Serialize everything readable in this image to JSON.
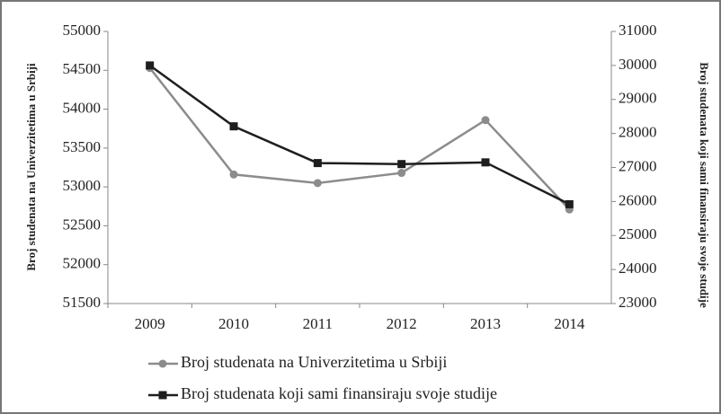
{
  "chart_data": {
    "type": "line",
    "categories": [
      "2009",
      "2010",
      "2011",
      "2012",
      "2013",
      "2014"
    ],
    "series": [
      {
        "name": "Broj studenata na Univerzitetima u Srbiji",
        "color": "#8c8c8c",
        "marker": "circle",
        "values": [
          54530,
          53160,
          53050,
          53180,
          53860,
          52710
        ]
      },
      {
        "name": "Broj studenata koji sami finansiraju svoje studije",
        "color": "#1e1e1e",
        "marker": "square",
        "axis": "y2",
        "values": [
          30000,
          28210,
          27130,
          27100,
          27150,
          25920
        ]
      }
    ],
    "ylabel": "Broj studenata na Univerzitetima u Srbiji",
    "y2label": "Broj studenata koji sami finansiraju svoje studije",
    "ylim": [
      51500,
      55000
    ],
    "yticks": [
      51500,
      52000,
      52500,
      53000,
      53500,
      54000,
      54500,
      55000
    ],
    "y2lim": [
      23000,
      31000
    ],
    "y2ticks": [
      23000,
      24000,
      25000,
      26000,
      27000,
      28000,
      29000,
      30000,
      31000
    ],
    "grid": false,
    "legend": "bottom"
  }
}
